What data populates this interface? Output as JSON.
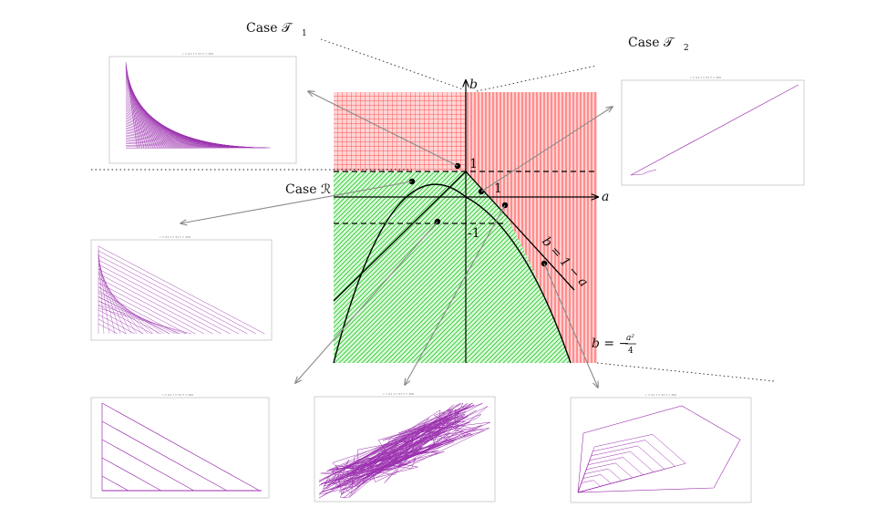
{
  "labels": {
    "case_t1": "Case 𝒯",
    "case_t1_sub": "1",
    "case_t2": "Case 𝒯",
    "case_t2_sub": "2",
    "case_r": "Case ℛ"
  },
  "axes": {
    "a_label": "a",
    "b_label": "b",
    "tick_pos_b": "1",
    "tick_pos_a": "1",
    "tick_neg_b": "-1"
  },
  "curves": {
    "line_label": "b = 1 − a",
    "parabola_b": "b = −",
    "parabola_num": "a²",
    "parabola_den": "4"
  },
  "colors": {
    "red_region": "#ff2a2a",
    "red_fill": "#ffcfcf",
    "green_region": "#1fcf1f",
    "green_fill": "#d8f7d8",
    "trajectory": "#9b2fae",
    "axis": "#000000",
    "pointer": "#8a8a8a"
  },
  "plots": {
    "t1_title": "c = 0.1 t = 51 T = 300",
    "t2_title": "c = 0.1 t = 51 T = 300",
    "r_title": "c = 0.1 t = 51 T = 300",
    "b1_title": "c = 0.1 t = 51 T = 300",
    "b2_title": "c = 0.1 t = 51 T = 300",
    "b3_title": "c = 0.1 t = 51 T = 300"
  }
}
